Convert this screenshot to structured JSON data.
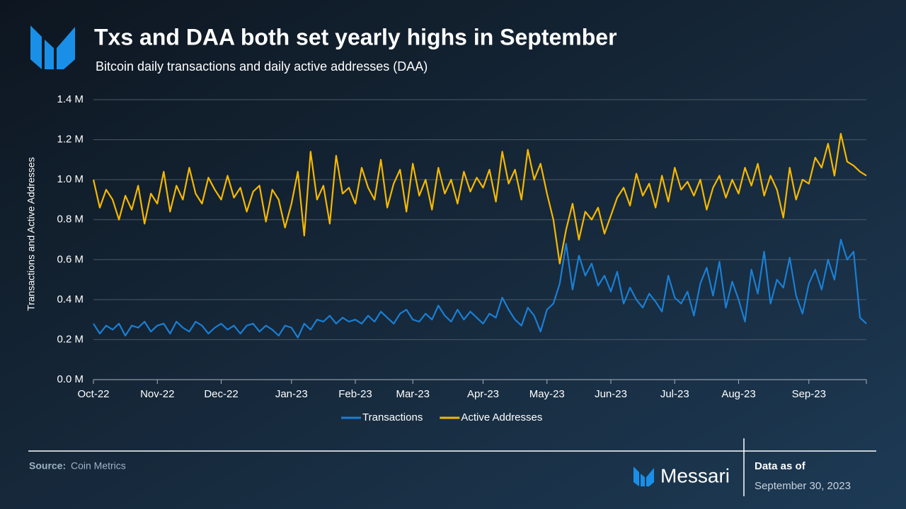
{
  "chart_data": {
    "type": "line",
    "title": "Txs and DAA both set yearly highs in September",
    "subtitle": "Bitcoin daily transactions and daily active addresses (DAA)",
    "y_label": "Transactions and Active Addresses",
    "categories": [
      "Oct-22",
      null,
      null,
      null,
      null,
      null,
      null,
      null,
      null,
      null,
      "Nov-22",
      null,
      null,
      null,
      null,
      null,
      null,
      null,
      null,
      null,
      "Dec-22",
      null,
      null,
      null,
      null,
      null,
      null,
      null,
      null,
      null,
      null,
      "Jan-23",
      null,
      null,
      null,
      null,
      null,
      null,
      null,
      null,
      null,
      "Feb-23",
      null,
      null,
      null,
      null,
      null,
      null,
      null,
      null,
      "Mar-23",
      null,
      null,
      null,
      null,
      null,
      null,
      null,
      null,
      null,
      null,
      "Apr-23",
      null,
      null,
      null,
      null,
      null,
      null,
      null,
      null,
      null,
      "May-23",
      null,
      null,
      null,
      null,
      null,
      null,
      null,
      null,
      null,
      "Jun-23",
      null,
      null,
      null,
      null,
      null,
      null,
      null,
      null,
      null,
      "Jul-23",
      null,
      null,
      null,
      null,
      null,
      null,
      null,
      null,
      null,
      "Aug-23",
      null,
      null,
      null,
      null,
      null,
      null,
      null,
      null,
      null,
      null,
      "Sep-23",
      null,
      null,
      null,
      null,
      null,
      null,
      null,
      null,
      null
    ],
    "series": [
      {
        "name": "Transactions",
        "color": "#1a7fd4",
        "values": [
          0.28,
          0.23,
          0.27,
          0.25,
          0.28,
          0.22,
          0.27,
          0.26,
          0.29,
          0.24,
          0.27,
          0.28,
          0.23,
          0.29,
          0.26,
          0.24,
          0.29,
          0.27,
          0.23,
          0.26,
          0.28,
          0.25,
          0.27,
          0.23,
          0.27,
          0.28,
          0.24,
          0.27,
          0.25,
          0.22,
          0.27,
          0.26,
          0.21,
          0.28,
          0.25,
          0.3,
          0.29,
          0.32,
          0.28,
          0.31,
          0.29,
          0.3,
          0.28,
          0.32,
          0.29,
          0.34,
          0.31,
          0.28,
          0.33,
          0.35,
          0.3,
          0.29,
          0.33,
          0.3,
          0.37,
          0.32,
          0.29,
          0.35,
          0.3,
          0.34,
          0.31,
          0.28,
          0.33,
          0.31,
          0.41,
          0.35,
          0.3,
          0.27,
          0.36,
          0.32,
          0.24,
          0.35,
          0.38,
          0.48,
          0.68,
          0.45,
          0.62,
          0.52,
          0.58,
          0.47,
          0.52,
          0.44,
          0.54,
          0.38,
          0.46,
          0.4,
          0.36,
          0.43,
          0.39,
          0.34,
          0.52,
          0.41,
          0.38,
          0.44,
          0.32,
          0.48,
          0.56,
          0.42,
          0.59,
          0.36,
          0.49,
          0.4,
          0.29,
          0.55,
          0.43,
          0.64,
          0.38,
          0.5,
          0.46,
          0.61,
          0.42,
          0.33,
          0.48,
          0.55,
          0.45,
          0.6,
          0.5,
          0.7,
          0.6,
          0.64,
          0.31,
          0.28
        ]
      },
      {
        "name": "Active Addresses",
        "color": "#f5b800",
        "values": [
          1.0,
          0.86,
          0.95,
          0.9,
          0.8,
          0.92,
          0.85,
          0.97,
          0.78,
          0.93,
          0.88,
          1.04,
          0.84,
          0.97,
          0.9,
          1.06,
          0.93,
          0.88,
          1.01,
          0.95,
          0.9,
          1.02,
          0.91,
          0.96,
          0.84,
          0.94,
          0.97,
          0.79,
          0.95,
          0.9,
          0.76,
          0.88,
          1.04,
          0.72,
          1.14,
          0.9,
          0.97,
          0.78,
          1.12,
          0.93,
          0.96,
          0.88,
          1.06,
          0.96,
          0.9,
          1.1,
          0.86,
          0.98,
          1.05,
          0.84,
          1.08,
          0.92,
          1.0,
          0.85,
          1.06,
          0.93,
          1.0,
          0.88,
          1.04,
          0.94,
          1.01,
          0.96,
          1.05,
          0.89,
          1.14,
          0.98,
          1.05,
          0.9,
          1.15,
          1.0,
          1.08,
          0.93,
          0.8,
          0.58,
          0.75,
          0.88,
          0.7,
          0.84,
          0.8,
          0.86,
          0.73,
          0.82,
          0.91,
          0.96,
          0.87,
          1.03,
          0.92,
          0.98,
          0.86,
          1.02,
          0.89,
          1.06,
          0.95,
          0.99,
          0.92,
          1.0,
          0.85,
          0.96,
          1.02,
          0.91,
          1.0,
          0.93,
          1.06,
          0.97,
          1.08,
          0.92,
          1.02,
          0.95,
          0.81,
          1.06,
          0.9,
          1.0,
          0.98,
          1.11,
          1.06,
          1.18,
          1.02,
          1.23,
          1.09,
          1.07,
          1.04,
          1.02
        ]
      }
    ],
    "ylim": [
      0,
      1.4
    ],
    "yticks": [
      {
        "value": 0,
        "label": "0.0 M"
      },
      {
        "value": 0.2,
        "label": "0.2 M"
      },
      {
        "value": 0.4,
        "label": "0.4 M"
      },
      {
        "value": 0.6,
        "label": "0.6 M"
      },
      {
        "value": 0.8,
        "label": "0.8 M"
      },
      {
        "value": 1.0,
        "label": "1.0 M"
      },
      {
        "value": 1.2,
        "label": "1.2 M"
      },
      {
        "value": 1.4,
        "label": "1.4 M"
      }
    ],
    "grid": true,
    "legend": "bottom",
    "source_label": "Source:",
    "source": "Coin Metrics",
    "brand": "Messari",
    "data_as_of": "Data as of",
    "date": "September 30, 2023"
  }
}
